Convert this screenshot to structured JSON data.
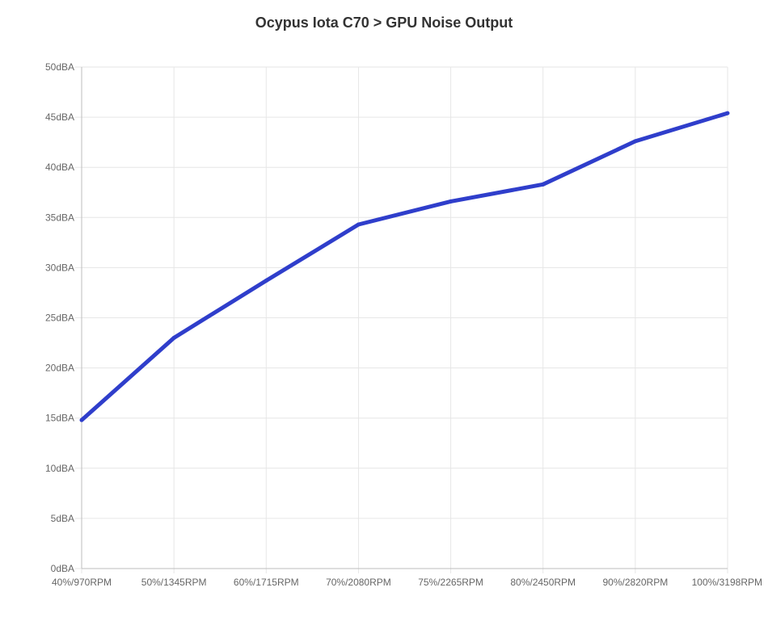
{
  "chart_data": {
    "type": "line",
    "title": "Ocypus Iota C70 > GPU Noise Output",
    "xlabel": "",
    "ylabel": "",
    "categories": [
      "40%/970RPM",
      "50%/1345RPM",
      "60%/1715RPM",
      "70%/2080RPM",
      "75%/2265RPM",
      "80%/2450RPM",
      "90%/2820RPM",
      "100%/3198RPM"
    ],
    "y_ticks": [
      "0dBA",
      "5dBA",
      "10dBA",
      "15dBA",
      "20dBA",
      "25dBA",
      "30dBA",
      "35dBA",
      "40dBA",
      "45dBA",
      "50dBA"
    ],
    "ylim": [
      0,
      50
    ],
    "grid": true,
    "series": [
      {
        "values": [
          14.8,
          23.0,
          28.7,
          34.3,
          36.6,
          38.3,
          42.6,
          45.4
        ],
        "color": "#2f3ecb"
      }
    ]
  }
}
